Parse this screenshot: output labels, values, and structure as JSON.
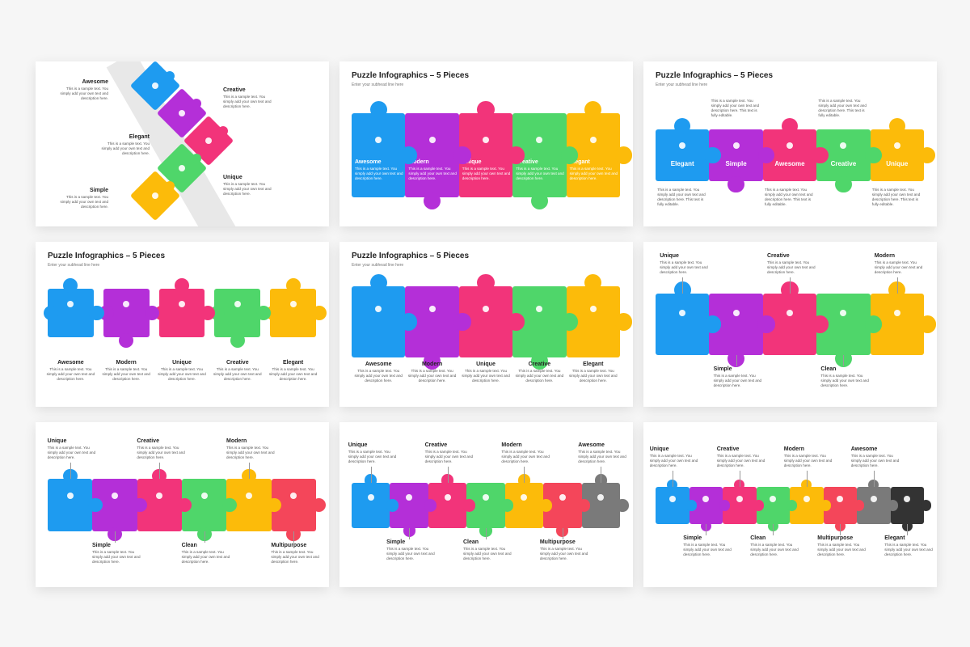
{
  "slides": [
    {
      "items": [
        {
          "label": "Awesome",
          "desc": "This is a sample text. You simply add your own text and description here."
        },
        {
          "label": "Creative",
          "desc": "This is a sample text. You simply add your own text and description here."
        },
        {
          "label": "Elegant",
          "desc": "This is a sample text. You simply add your own text and description here."
        },
        {
          "label": "Unique",
          "desc": "This is a sample text. You simply add your own text and description here."
        },
        {
          "label": "Simple",
          "desc": "This is a sample text. You simply add your own text and description here."
        }
      ]
    },
    {
      "title": "Puzzle Infographics – 5 Pieces",
      "subtitle": "Enter your subhead line here",
      "items": [
        {
          "label": "Awesome",
          "desc": "This is a sample text. You simply add your own text and description here."
        },
        {
          "label": "Modern",
          "desc": "This is a sample text. You simply add your own text and description here."
        },
        {
          "label": "Unique",
          "desc": "This is a sample text. You simply add your own text and description here."
        },
        {
          "label": "Creative",
          "desc": "This is a sample text. You simply add your own text and description here."
        },
        {
          "label": "Elegant",
          "desc": "This is a sample text. You simply add your own text and description here."
        }
      ]
    },
    {
      "title": "Puzzle Infographics – 5 Pieces",
      "subtitle": "Enter your subhead line here",
      "items": [
        {
          "label": "Elegant",
          "desc": "This is a sample text. You simply add your own text and description here. This text is fully editable."
        },
        {
          "label": "Simple",
          "desc": "This is a sample text. You simply add your own text and description here. This text is fully editable."
        },
        {
          "label": "Awesome",
          "desc": "This is a sample text. You simply add your own text and description here. This text is fully editable."
        },
        {
          "label": "Creative",
          "desc": "This is a sample text. You simply add your own text and description here. This text is fully editable."
        },
        {
          "label": "Unique",
          "desc": "This is a sample text. You simply add your own text and description here. This text is fully editable."
        }
      ]
    },
    {
      "title": "Puzzle Infographics – 5 Pieces",
      "subtitle": "Enter your subhead line here",
      "items": [
        {
          "label": "Awesome",
          "desc": "This is a sample text. You simply add your own text and description here."
        },
        {
          "label": "Modern",
          "desc": "This is a sample text. You simply add your own text and description here."
        },
        {
          "label": "Unique",
          "desc": "This is a sample text. You simply add your own text and description here."
        },
        {
          "label": "Creative",
          "desc": "This is a sample text. You simply add your own text and description here."
        },
        {
          "label": "Elegant",
          "desc": "This is a sample text. You simply add your own text and description here."
        }
      ]
    },
    {
      "title": "Puzzle Infographics – 5 Pieces",
      "subtitle": "Enter your subhead line here",
      "items": [
        {
          "label": "Awesome",
          "desc": "This is a sample text. You simply add your own text and description here."
        },
        {
          "label": "Modern",
          "desc": "This is a sample text. You simply add your own text and description here."
        },
        {
          "label": "Unique",
          "desc": "This is a sample text. You simply add your own text and description here."
        },
        {
          "label": "Creative",
          "desc": "This is a sample text. You simply add your own text and description here."
        },
        {
          "label": "Elegant",
          "desc": "This is a sample text. You simply add your own text and description here."
        }
      ]
    },
    {
      "items": [
        {
          "label": "Unique",
          "desc": "This is a sample text. You simply add your own text and description here."
        },
        {
          "label": "Simple",
          "desc": "This is a sample text. You simply add your own text and description here."
        },
        {
          "label": "Creative",
          "desc": "This is a sample text. You simply add your own text and description here."
        },
        {
          "label": "Clean",
          "desc": "This is a sample text. You simply add your own text and description here."
        },
        {
          "label": "Modern",
          "desc": "This is a sample text. You simply add your own text and description here."
        }
      ]
    },
    {
      "items": [
        {
          "label": "Unique",
          "desc": "This is a sample text. You simply add your own text and description here."
        },
        {
          "label": "Simple",
          "desc": "This is a sample text. You simply add your own text and description here."
        },
        {
          "label": "Creative",
          "desc": "This is a sample text. You simply add your own text and description here."
        },
        {
          "label": "Clean",
          "desc": "This is a sample text. You simply add your own text and description here."
        },
        {
          "label": "Modern",
          "desc": "This is a sample text. You simply add your own text and description here."
        },
        {
          "label": "Multipurpose",
          "desc": "This is a sample text. You simply add your own text and description here."
        }
      ]
    },
    {
      "items": [
        {
          "label": "Unique",
          "desc": "This is a sample text. You simply add your own text and description here."
        },
        {
          "label": "Simple",
          "desc": "This is a sample text. You simply add your own text and description here."
        },
        {
          "label": "Creative",
          "desc": "This is a sample text. You simply add your own text and description here."
        },
        {
          "label": "Clean",
          "desc": "This is a sample text. You simply add your own text and description here."
        },
        {
          "label": "Modern",
          "desc": "This is a sample text. You simply add your own text and description here."
        },
        {
          "label": "Multipurpose",
          "desc": "This is a sample text. You simply add your own text and description here."
        },
        {
          "label": "Awesome",
          "desc": "This is a sample text. You simply add your own text and description here."
        }
      ]
    },
    {
      "items": [
        {
          "label": "Unique",
          "desc": "This is a sample text. You simply add your own text and description here."
        },
        {
          "label": "Simple",
          "desc": "This is a sample text. You simply add your own text and description here."
        },
        {
          "label": "Creative",
          "desc": "This is a sample text. You simply add your own text and description here."
        },
        {
          "label": "Clean",
          "desc": "This is a sample text. You simply add your own text and description here."
        },
        {
          "label": "Modern",
          "desc": "This is a sample text. You simply add your own text and description here."
        },
        {
          "label": "Multipurpose",
          "desc": "This is a sample text. You simply add your own text and description here."
        },
        {
          "label": "Awesome",
          "desc": "This is a sample text. You simply add your own text and description here."
        },
        {
          "label": "Elegant",
          "desc": "This is a sample text. You simply add your own text and description here."
        }
      ]
    }
  ]
}
